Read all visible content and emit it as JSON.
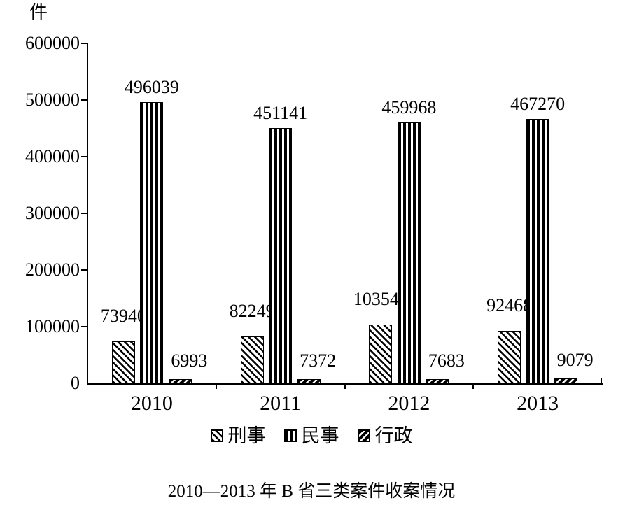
{
  "unit_label": "件",
  "title": "2010—2013 年 B 省三类案件收案情况",
  "colors": {
    "ink": "#000000",
    "background": "#ffffff"
  },
  "chart_data": {
    "type": "bar",
    "categories": [
      "2010",
      "2011",
      "2012",
      "2013"
    ],
    "series": [
      {
        "name": "刑事",
        "pattern": "diagonal-down",
        "values": [
          73940,
          82249,
          103542,
          92468
        ],
        "label_dx": 0,
        "label_gap": 22
      },
      {
        "name": "民事",
        "pattern": "vertical",
        "values": [
          496039,
          451141,
          459968,
          467270
        ],
        "label_dx": 0,
        "label_gap": 7
      },
      {
        "name": "行政",
        "pattern": "diagonal-up",
        "values": [
          6993,
          7372,
          7683,
          9079
        ],
        "label_dx": 13,
        "label_gap": 12
      }
    ],
    "ylabel": "件",
    "xlabel": "",
    "ylim": [
      0,
      600000
    ],
    "ytick_step": 100000,
    "grid": false,
    "legend_position": "bottom",
    "data_labels": true
  }
}
